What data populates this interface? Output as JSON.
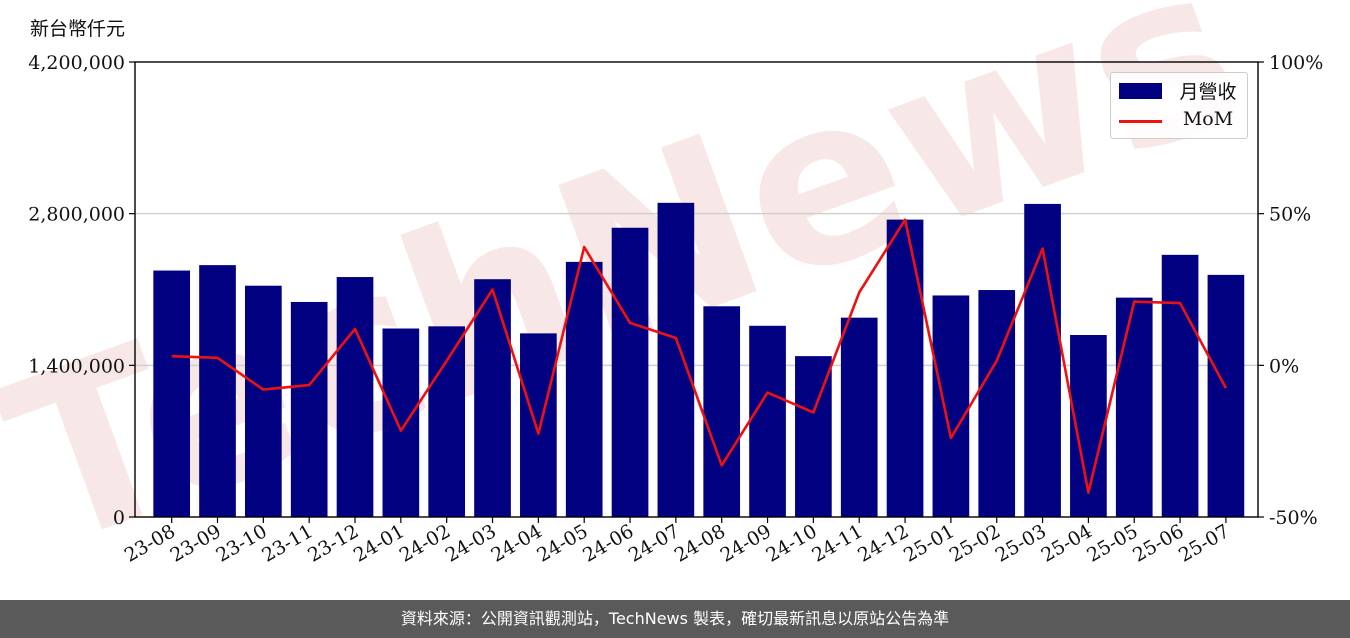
{
  "chart_data": {
    "type": "bar",
    "unit_label": "新台幣仟元",
    "categories": [
      "23-08",
      "23-09",
      "23-10",
      "23-11",
      "23-12",
      "24-01",
      "24-02",
      "24-03",
      "24-04",
      "24-05",
      "24-06",
      "24-07",
      "24-08",
      "24-09",
      "24-10",
      "24-11",
      "24-12",
      "25-01",
      "25-02",
      "25-03",
      "25-04",
      "25-05",
      "25-06",
      "25-07"
    ],
    "series": [
      {
        "name": "月營收",
        "axis": "left",
        "color": "#000080",
        "values": [
          2275000,
          2325000,
          2135000,
          1985000,
          2215000,
          1740000,
          1760000,
          2195000,
          1695000,
          2355000,
          2670000,
          2900000,
          1945000,
          1765000,
          1485000,
          1840000,
          2745000,
          2045000,
          2095000,
          2890000,
          1680000,
          2025000,
          2420000,
          2235000
        ]
      },
      {
        "name": "MoM",
        "axis": "right",
        "type": "line",
        "color": "#ee1111",
        "values": [
          3.0,
          2.5,
          -8.0,
          -6.5,
          12.0,
          -21.5,
          1.5,
          25.0,
          -22.5,
          39.0,
          14.0,
          9.0,
          -33.0,
          -9.0,
          -15.5,
          24.0,
          48.0,
          -24.0,
          1.5,
          38.5,
          -42.0,
          21.0,
          20.5,
          -7.5
        ]
      }
    ],
    "y_left": {
      "min": 0,
      "max": 4200000,
      "ticks": [
        0,
        1400000,
        2800000,
        4200000
      ],
      "tick_labels": [
        "0",
        "1,400,000",
        "2,800,000",
        "4,200,000"
      ]
    },
    "y_right": {
      "min": -50,
      "max": 100,
      "ticks": [
        -50,
        0,
        50,
        100
      ],
      "tick_labels": [
        "-50%",
        "0%",
        "50%",
        "100%"
      ]
    },
    "grid": "horizontal",
    "legend_position": "top-right",
    "watermark": "TechNews"
  },
  "footer": {
    "source_text": "資料來源：公開資訊觀測站，TechNews 製表，確切最新訊息以原站公告為準"
  }
}
